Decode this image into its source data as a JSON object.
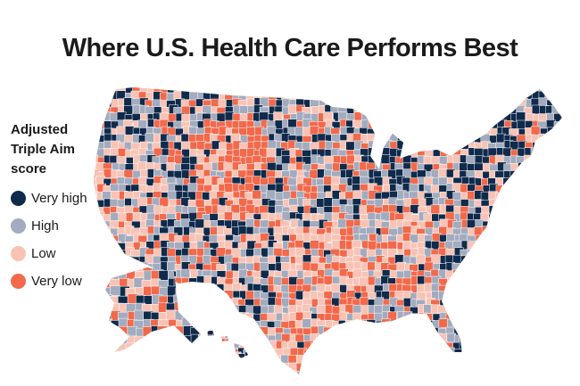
{
  "title": "Where U.S. Health Care Performs Best",
  "legend": {
    "title": "Adjusted Triple Aim score",
    "items": [
      {
        "label": "Very high",
        "color": "#0f2a4b"
      },
      {
        "label": "High",
        "color": "#a3abbe"
      },
      {
        "label": "Low",
        "color": "#f8c3b5"
      },
      {
        "label": "Very low",
        "color": "#f2694b"
      }
    ]
  }
}
